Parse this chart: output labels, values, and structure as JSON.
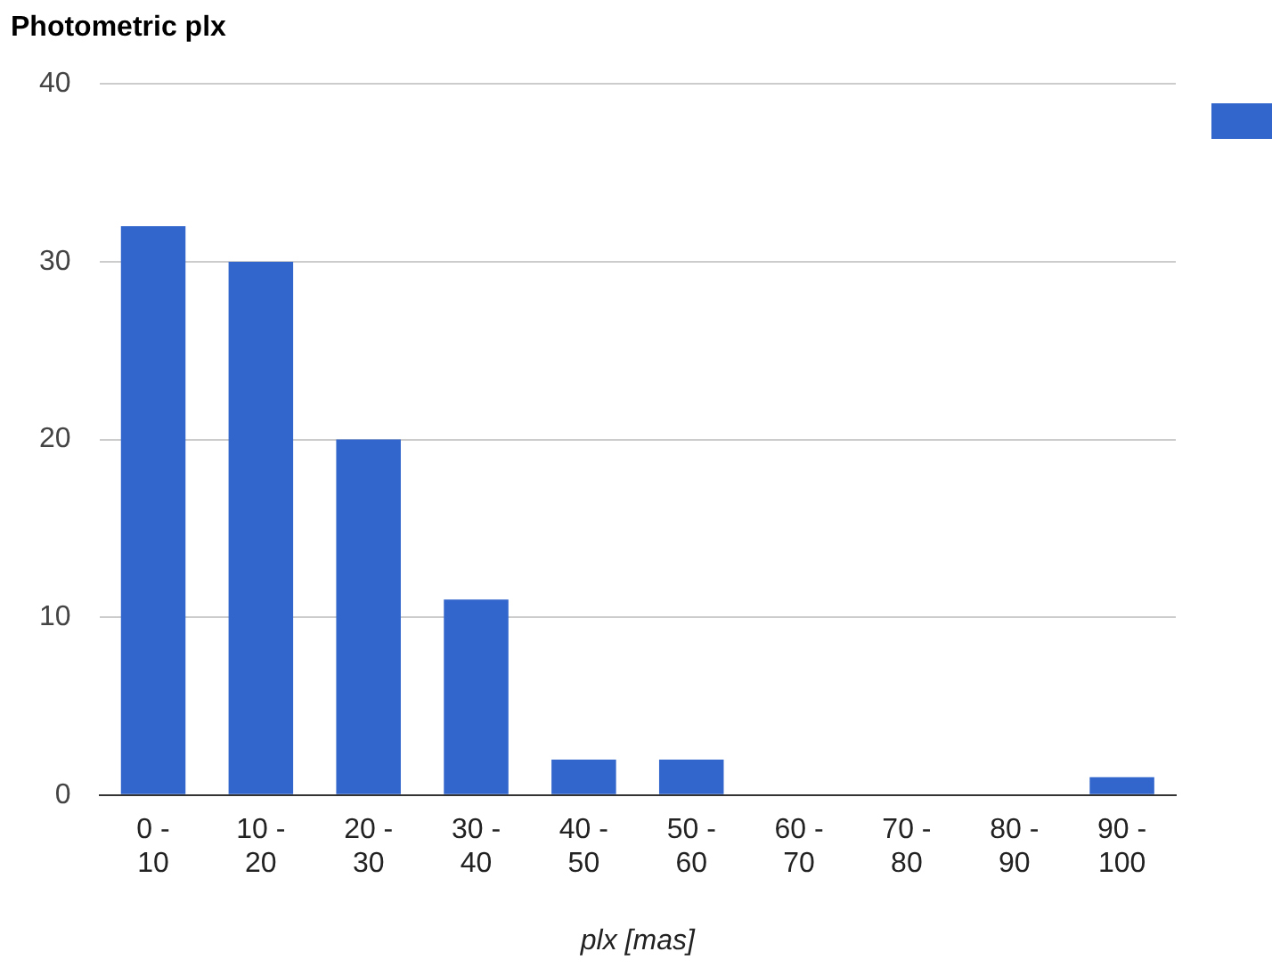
{
  "chart_data": {
    "type": "bar",
    "title": "Photometric plx",
    "xlabel": "plx [mas]",
    "categories": [
      "0 - 10",
      "10 - 20",
      "20 - 30",
      "30 - 40",
      "40 - 50",
      "50 - 60",
      "60 - 70",
      "70 - 80",
      "80 - 90",
      "90 - 100"
    ],
    "series": [
      {
        "color": "#3366cc",
        "values": [
          32,
          30,
          20,
          11,
          2,
          2,
          0,
          0,
          0,
          1
        ]
      }
    ],
    "ylim": [
      0,
      40
    ],
    "yticks": [
      0,
      10,
      20,
      30,
      40
    ],
    "grid": "y"
  }
}
